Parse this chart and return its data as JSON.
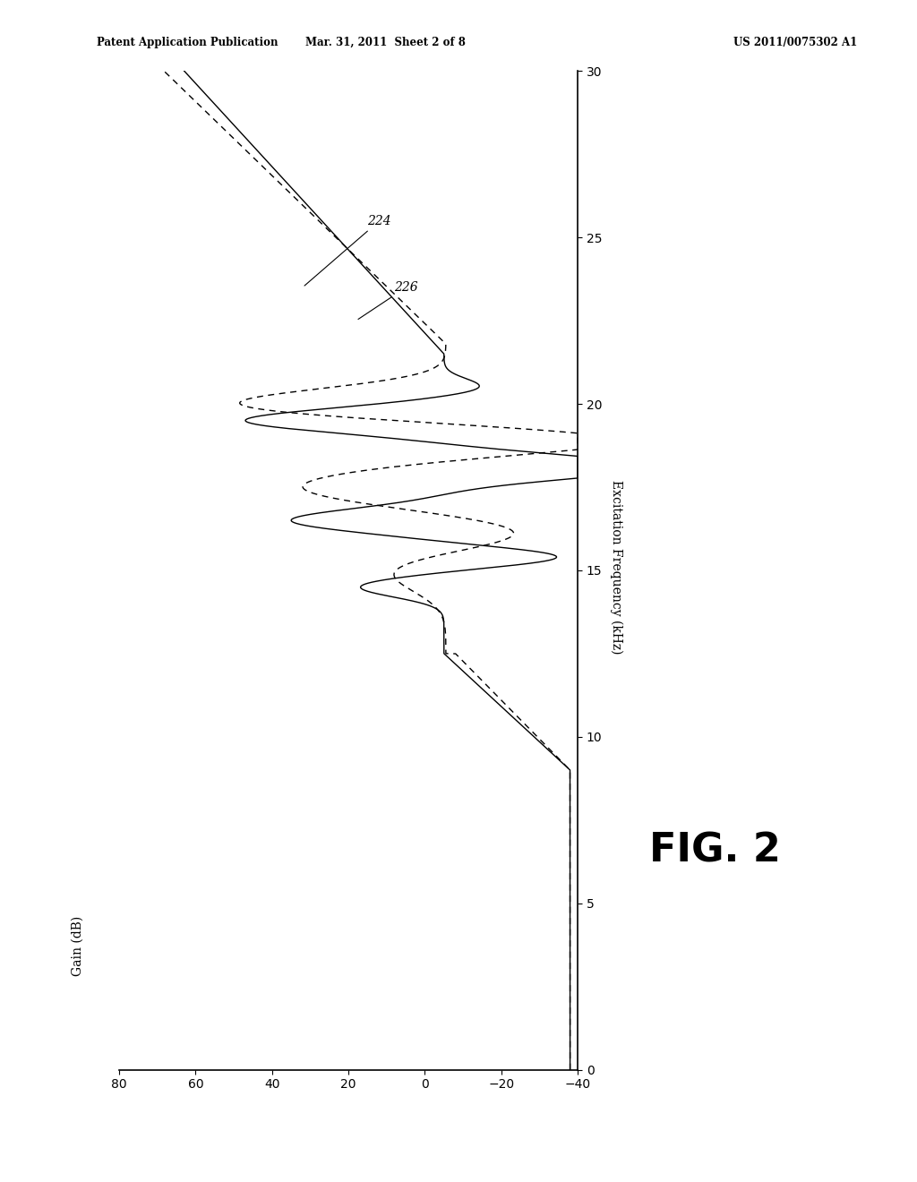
{
  "title": "",
  "freq_label": "Excitation Frequency (kHz)",
  "gain_label": "Gain (dB)",
  "freq_lim": [
    0,
    30
  ],
  "gain_lim": [
    -40,
    80
  ],
  "freq_ticks": [
    0,
    5,
    10,
    15,
    20,
    25,
    30
  ],
  "gain_ticks": [
    -40,
    -20,
    0,
    20,
    40,
    60,
    80
  ],
  "label_224": "224",
  "label_226": "226",
  "fig_label": "FIG. 2",
  "header_left": "Patent Application Publication",
  "header_center": "Mar. 31, 2011  Sheet 2 of 8",
  "header_right": "US 2011/0075302 A1",
  "line_color": "#000000",
  "bg_color": "#ffffff"
}
